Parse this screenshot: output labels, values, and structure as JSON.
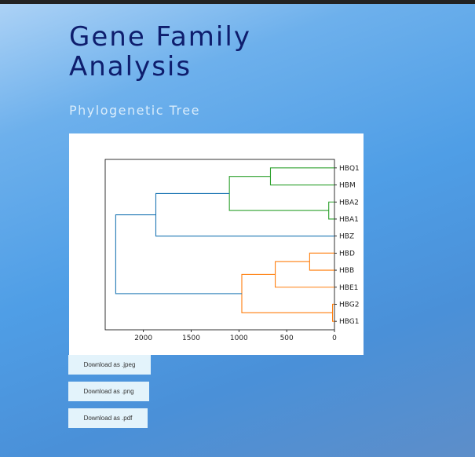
{
  "page": {
    "title_line1": "Gene Family",
    "title_line2": "Analysis",
    "subtitle": "Phylogenetic Tree"
  },
  "buttons": {
    "jpeg": "Download as .jpeg",
    "png": "Download as .png",
    "pdf": "Download as .pdf"
  },
  "chart_data": {
    "type": "dendrogram",
    "orientation": "left",
    "xlim": [
      2400,
      0
    ],
    "x_ticks": [
      2000,
      1500,
      1000,
      500,
      0
    ],
    "leaves": [
      "HBQ1",
      "HBM",
      "HBA2",
      "HBA1",
      "HBZ",
      "HBD",
      "HBB",
      "HBE1",
      "HBG2",
      "HBG1"
    ],
    "links": [
      {
        "left": "HBQ1",
        "right": "HBM",
        "height": 670,
        "color": "#2ca02c"
      },
      {
        "left": "HBA2",
        "right": "HBA1",
        "height": 60,
        "color": "#2ca02c"
      },
      {
        "left": "HBQ1+HBM",
        "right": "HBA2+HBA1",
        "height": 1100,
        "color": "#2ca02c"
      },
      {
        "left": "HBQ1+HBM+HBA2+HBA1",
        "right": "HBZ",
        "height": 1870,
        "color": "#1f77b4"
      },
      {
        "left": "HBD",
        "right": "HBB",
        "height": 260,
        "color": "#ff7f0e"
      },
      {
        "left": "HBD+HBB",
        "right": "HBE1",
        "height": 620,
        "color": "#ff7f0e"
      },
      {
        "left": "HBG2",
        "right": "HBG1",
        "height": 20,
        "color": "#ff7f0e"
      },
      {
        "left": "HBD+HBB+HBE1",
        "right": "HBG2+HBG1",
        "height": 970,
        "color": "#ff7f0e"
      },
      {
        "left": "cluster_1",
        "right": "cluster_2",
        "height": 2290,
        "color": "#1f77b4"
      }
    ],
    "grid": false
  }
}
